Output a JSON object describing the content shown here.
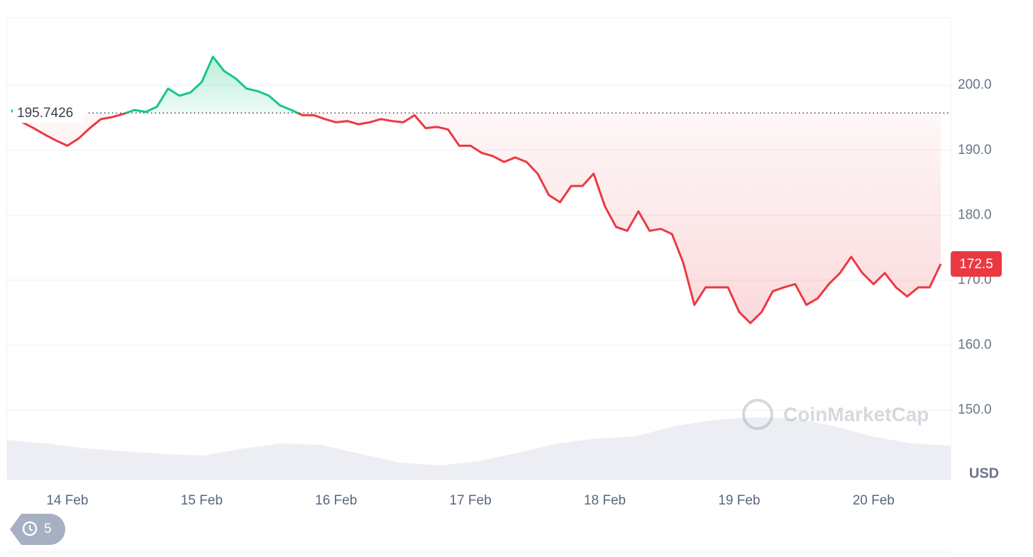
{
  "chart_data": {
    "type": "line",
    "categories": [
      null,
      null,
      null,
      null,
      null,
      "14 Feb",
      null,
      null,
      null,
      null,
      null,
      null,
      null,
      null,
      null,
      null,
      null,
      "15 Feb",
      null,
      null,
      null,
      null,
      null,
      null,
      null,
      null,
      null,
      null,
      null,
      "16 Feb",
      null,
      null,
      null,
      null,
      null,
      null,
      null,
      null,
      null,
      null,
      null,
      "17 Feb",
      null,
      null,
      null,
      null,
      null,
      null,
      null,
      null,
      null,
      null,
      null,
      "18 Feb",
      null,
      null,
      null,
      null,
      null,
      null,
      null,
      null,
      null,
      null,
      null,
      "19 Feb",
      null,
      null,
      null,
      null,
      null,
      null,
      null,
      null,
      null,
      null,
      null,
      "20 Feb",
      null,
      null,
      null,
      null,
      null,
      null
    ],
    "series": [
      {
        "up_color": "#16c784",
        "down_color": "#ea3943",
        "values": [
          196.2,
          194.3,
          193.4,
          192.4,
          191.5,
          190.7,
          191.8,
          193.4,
          194.8,
          195.1,
          195.6,
          196.2,
          195.9,
          196.7,
          199.5,
          198.4,
          198.9,
          200.5,
          204.4,
          202.2,
          201.1,
          199.5,
          199.1,
          198.4,
          196.9,
          196.2,
          195.4,
          195.4,
          194.8,
          194.3,
          194.5,
          194.0,
          194.3,
          194.8,
          194.5,
          194.3,
          195.4,
          193.4,
          193.6,
          193.2,
          190.7,
          190.7,
          189.6,
          189.1,
          188.2,
          188.9,
          188.2,
          186.4,
          183.1,
          182.0,
          184.5,
          184.5,
          186.4,
          181.4,
          178.2,
          177.6,
          180.6,
          177.6,
          177.9,
          177.1,
          172.7,
          166.2,
          168.9,
          168.9,
          168.9,
          165.1,
          163.4,
          165.1,
          168.3,
          168.9,
          169.4,
          166.2,
          167.2,
          169.4,
          171.1,
          173.6,
          171.1,
          169.4,
          171.1,
          168.9,
          167.5,
          168.9,
          168.9,
          172.5
        ]
      }
    ],
    "baseline": 195.7426,
    "current_price": 172.5,
    "ylim": [
      139.3,
      210.4
    ],
    "yticks": [
      {
        "value": 150,
        "label": "150.0"
      },
      {
        "value": 160,
        "label": "160.0"
      },
      {
        "value": 170,
        "label": "170.0"
      },
      {
        "value": 180,
        "label": "180.0"
      },
      {
        "value": 190,
        "label": "190.0"
      },
      {
        "value": 200,
        "label": "200.0"
      }
    ],
    "grid": true,
    "unit": "USD",
    "volume": {
      "color": "#eceef3",
      "vlim": [
        0,
        100
      ],
      "values": [
        56,
        51,
        44,
        40,
        36,
        34,
        44,
        51,
        49,
        36,
        24,
        20,
        26,
        38,
        51,
        58,
        61,
        76,
        84,
        88,
        86,
        76,
        61,
        51,
        48
      ]
    },
    "watermark": "CoinMarketCap",
    "history_count": 5
  }
}
